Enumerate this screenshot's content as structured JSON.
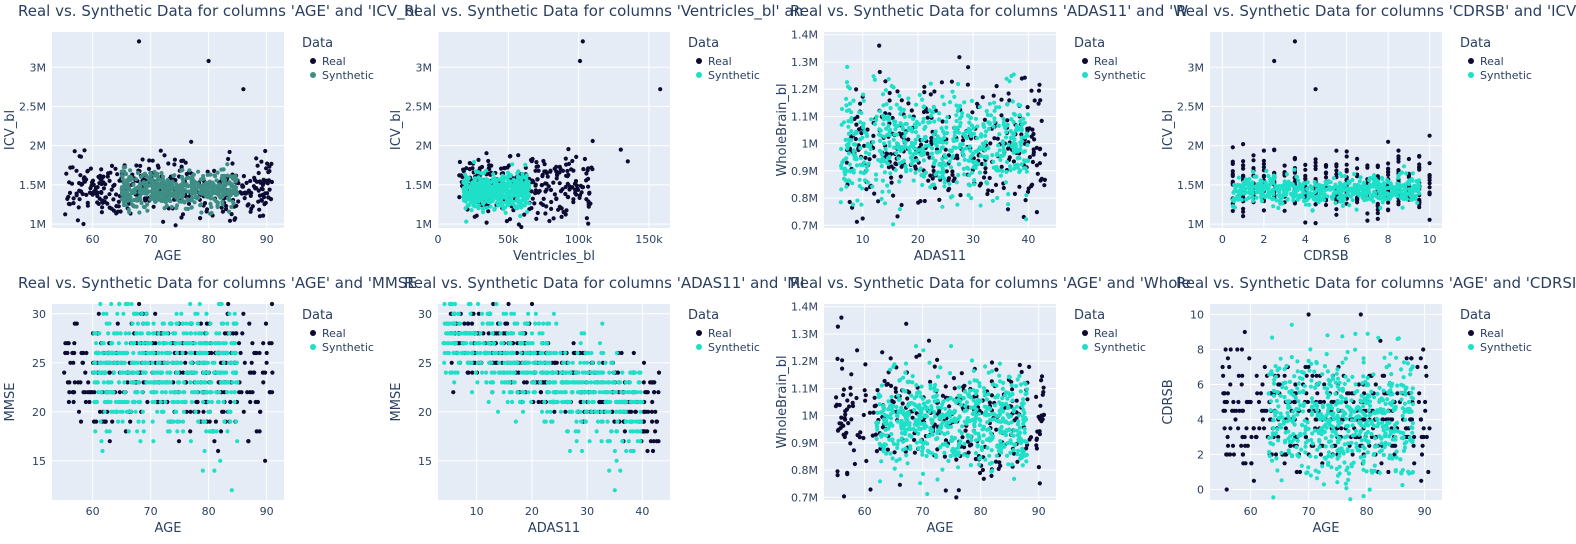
{
  "colors": {
    "real": "#0d0a33",
    "synthetic": "#1ee0c8",
    "synthetic_alt": "#3e8e85",
    "plot_bg": "#e5ecf6",
    "grid": "#ffffff"
  },
  "legend": {
    "title": "Data",
    "real": "Real",
    "synthetic": "Synthetic"
  },
  "chart_data": [
    {
      "type": "scatter",
      "title": "Real vs. Synthetic Data for columns 'AGE' and 'ICV_bl",
      "xlabel": "AGE",
      "ylabel": "ICV_bl",
      "xlim": [
        53,
        93
      ],
      "ylim": [
        950000,
        3450000
      ],
      "xticks": [
        60,
        70,
        80,
        90
      ],
      "xtick_labels": [
        "60",
        "70",
        "80",
        "90"
      ],
      "yticks": [
        1000000,
        1500000,
        2000000,
        2500000,
        3000000
      ],
      "ytick_labels": [
        "1M",
        "1.5M",
        "2M",
        "2.5M",
        "3M"
      ],
      "synthetic_color": "synthetic_alt",
      "real": {
        "x_range": [
          55,
          91
        ],
        "y_center": 1450000,
        "y_spread": 180000,
        "n": 380,
        "outliers": [
          [
            68,
            3330000
          ],
          [
            80,
            3080000
          ],
          [
            86,
            2720000
          ],
          [
            77,
            2050000
          ],
          [
            58,
            1860000
          ]
        ]
      },
      "synthetic": {
        "x_range": [
          65,
          85
        ],
        "y_center": 1440000,
        "y_spread": 110000,
        "n": 520
      }
    },
    {
      "type": "scatter",
      "title": "Real vs. Synthetic Data for columns 'Ventricles_bl' an",
      "xlabel": "Ventricles_bl",
      "ylabel": "ICV_bl",
      "xlim": [
        0,
        165000
      ],
      "ylim": [
        950000,
        3450000
      ],
      "xticks": [
        0,
        50000,
        100000,
        150000
      ],
      "xtick_labels": [
        "0",
        "50k",
        "100k",
        "150k"
      ],
      "yticks": [
        1000000,
        1500000,
        2000000,
        2500000,
        3000000
      ],
      "ytick_labels": [
        "1M",
        "1.5M",
        "2M",
        "2.5M",
        "3M"
      ],
      "synthetic_color": "synthetic",
      "real": {
        "x_range": [
          15000,
          110000
        ],
        "y_center": 1480000,
        "y_spread": 200000,
        "n": 300,
        "outliers": [
          [
            103000,
            3330000
          ],
          [
            101000,
            3080000
          ],
          [
            158000,
            2720000
          ],
          [
            110000,
            2060000
          ],
          [
            130000,
            1950000
          ],
          [
            135000,
            1800000
          ]
        ]
      },
      "synthetic": {
        "x_range": [
          18000,
          65000
        ],
        "y_center": 1420000,
        "y_spread": 110000,
        "n": 520
      }
    },
    {
      "type": "scatter",
      "title": "Real vs. Synthetic Data for columns 'ADAS11' and 'W",
      "xlabel": "ADAS11",
      "ylabel": "WholeBrain_bl",
      "xlim": [
        3,
        45
      ],
      "ylim": [
        690000,
        1410000
      ],
      "xticks": [
        10,
        20,
        30,
        40
      ],
      "xtick_labels": [
        "10",
        "20",
        "30",
        "40"
      ],
      "yticks": [
        700000,
        800000,
        900000,
        1000000,
        1100000,
        1200000,
        1300000,
        1400000
      ],
      "ytick_labels": [
        "0.7M",
        "0.8M",
        "0.9M",
        "1M",
        "1.1M",
        "1.2M",
        "1.3M",
        "1.4M"
      ],
      "synthetic_color": "synthetic",
      "real": {
        "x_range": [
          7,
          43
        ],
        "y_center": 990000,
        "y_spread": 110000,
        "n": 320,
        "outliers": [
          [
            13,
            1360000
          ],
          [
            10,
            725000
          ],
          [
            43,
            960000
          ]
        ]
      },
      "synthetic": {
        "x_range": [
          6,
          40
        ],
        "y_center": 1000000,
        "y_spread": 95000,
        "n": 620
      }
    },
    {
      "type": "scatter",
      "title": "Real vs. Synthetic Data for columns 'CDRSB' and 'ICV",
      "xlabel": "CDRSB",
      "ylabel": "ICV_bl",
      "xlim": [
        -0.6,
        10.6
      ],
      "ylim": [
        950000,
        3450000
      ],
      "xticks": [
        0,
        2,
        4,
        6,
        8,
        10
      ],
      "xtick_labels": [
        "0",
        "2",
        "4",
        "6",
        "8",
        "10"
      ],
      "yticks": [
        1000000,
        1500000,
        2000000,
        2500000,
        3000000
      ],
      "ytick_labels": [
        "1M",
        "1.5M",
        "2M",
        "2.5M",
        "3M"
      ],
      "synthetic_color": "synthetic",
      "real": {
        "x_range": [
          0.5,
          10
        ],
        "y_center": 1500000,
        "y_spread": 190000,
        "n": 380,
        "x_step": 0.5,
        "outliers": [
          [
            3.5,
            3330000
          ],
          [
            2.5,
            3080000
          ],
          [
            4.5,
            2720000
          ],
          [
            8,
            2050000
          ]
        ]
      },
      "synthetic": {
        "x_range": [
          0.5,
          9.5
        ],
        "y_center": 1440000,
        "y_spread": 90000,
        "n": 600
      }
    },
    {
      "type": "scatter",
      "title": "Real vs. Synthetic Data for columns 'AGE' and 'MMSE",
      "xlabel": "AGE",
      "ylabel": "MMSE",
      "xlim": [
        53,
        93
      ],
      "ylim": [
        11,
        31
      ],
      "xticks": [
        60,
        70,
        80,
        90
      ],
      "xtick_labels": [
        "60",
        "70",
        "80",
        "90"
      ],
      "yticks": [
        15,
        20,
        25,
        30
      ],
      "ytick_labels": [
        "15",
        "20",
        "25",
        "30"
      ],
      "synthetic_color": "synthetic",
      "real": {
        "x_range": [
          55,
          91
        ],
        "y_center": 24,
        "y_spread": 3,
        "n": 360,
        "y_int": true,
        "outliers": [
          [
            86,
            30
          ],
          [
            58,
            19
          ]
        ]
      },
      "synthetic": {
        "x_range": [
          60,
          85
        ],
        "y_center": 24.5,
        "y_spread": 3.5,
        "n": 600,
        "y_int": true,
        "extra": [
          [
            84,
            12
          ],
          [
            79,
            14
          ],
          [
            81,
            14
          ],
          [
            82,
            15
          ]
        ]
      }
    },
    {
      "type": "scatter",
      "title": "Real vs. Synthetic Data for columns 'ADAS11' and 'MI",
      "xlabel": "ADAS11",
      "ylabel": "MMSE",
      "xlim": [
        3,
        45
      ],
      "ylim": [
        11,
        31
      ],
      "xticks": [
        10,
        20,
        30,
        40
      ],
      "xtick_labels": [
        "10",
        "20",
        "30",
        "40"
      ],
      "yticks": [
        15,
        20,
        25,
        30
      ],
      "ytick_labels": [
        "15",
        "20",
        "25",
        "30"
      ],
      "synthetic_color": "synthetic",
      "real": {
        "x_range": [
          5,
          43
        ],
        "y_center": 24,
        "y_spread": 3,
        "n": 340,
        "y_int": true,
        "neg_slope": true,
        "outliers": [
          [
            43,
            24
          ]
        ]
      },
      "synthetic": {
        "x_range": [
          4,
          40
        ],
        "y_center": 24,
        "y_spread": 3.5,
        "n": 600,
        "y_int": true,
        "neg_slope": true,
        "extra": [
          [
            35,
            12
          ],
          [
            34,
            14
          ],
          [
            36,
            14
          ]
        ]
      }
    },
    {
      "type": "scatter",
      "title": "Real vs. Synthetic Data for columns 'AGE' and 'Whole",
      "xlabel": "AGE",
      "ylabel": "WholeBrain_bl",
      "xlim": [
        53,
        93
      ],
      "ylim": [
        690000,
        1410000
      ],
      "xticks": [
        60,
        70,
        80,
        90
      ],
      "xtick_labels": [
        "60",
        "70",
        "80",
        "90"
      ],
      "yticks": [
        700000,
        800000,
        900000,
        1000000,
        1100000,
        1200000,
        1300000,
        1400000
      ],
      "ytick_labels": [
        "0.7M",
        "0.8M",
        "0.9M",
        "1M",
        "1.1M",
        "1.2M",
        "1.3M",
        "1.4M"
      ],
      "synthetic_color": "synthetic",
      "real": {
        "x_range": [
          55,
          91
        ],
        "y_center": 990000,
        "y_spread": 110000,
        "n": 320,
        "outliers": [
          [
            56,
            1360000
          ],
          [
            74,
            725000
          ],
          [
            57,
            785000
          ]
        ]
      },
      "synthetic": {
        "x_range": [
          62,
          88
        ],
        "y_center": 980000,
        "y_spread": 90000,
        "n": 620
      }
    },
    {
      "type": "scatter",
      "title": "Real vs. Synthetic Data for columns 'AGE' and 'CDRSI",
      "xlabel": "AGE",
      "ylabel": "CDRSB",
      "xlim": [
        53,
        93
      ],
      "ylim": [
        -0.6,
        10.6
      ],
      "xticks": [
        60,
        70,
        80,
        90
      ],
      "xtick_labels": [
        "60",
        "70",
        "80",
        "90"
      ],
      "yticks": [
        0,
        2,
        4,
        6,
        8,
        10
      ],
      "ytick_labels": [
        "0",
        "2",
        "4",
        "6",
        "8",
        "10"
      ],
      "synthetic_color": "synthetic",
      "real": {
        "x_range": [
          55,
          91
        ],
        "y_center": 4.2,
        "y_spread": 1.6,
        "n": 340,
        "y_step": 0.5,
        "outliers": [
          [
            70,
            10
          ],
          [
            79,
            10
          ],
          [
            59,
            9
          ],
          [
            56,
            2
          ]
        ]
      },
      "synthetic": {
        "x_range": [
          63,
          88
        ],
        "y_center": 4,
        "y_spread": 1.8,
        "n": 620
      }
    }
  ]
}
